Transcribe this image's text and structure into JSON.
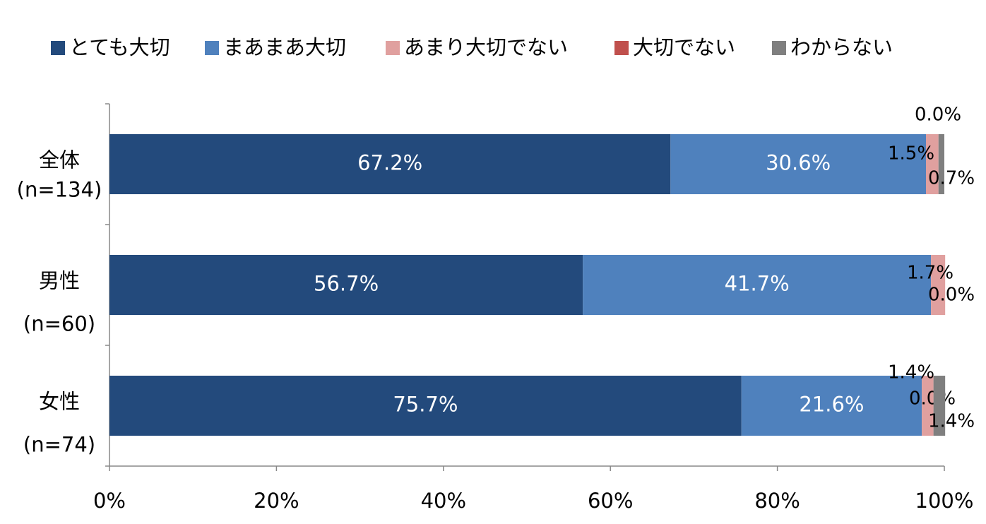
{
  "chart_data": {
    "type": "stacked_bar_horizontal",
    "categories": [
      {
        "label": "全体",
        "n": "(n=134)"
      },
      {
        "label": "男性",
        "n": "(n=60)"
      },
      {
        "label": "女性",
        "n": "(n=74)"
      }
    ],
    "series": [
      {
        "name": "とても大切",
        "color": "#234a7c",
        "values": [
          67.2,
          56.7,
          75.7
        ],
        "value_labels": [
          "67.2%",
          "56.7%",
          "75.7%"
        ]
      },
      {
        "name": "まあまあ大切",
        "color": "#4f81bd",
        "values": [
          30.6,
          41.7,
          21.6
        ],
        "value_labels": [
          "30.6%",
          "41.7%",
          "21.6%"
        ]
      },
      {
        "name": "あまり大切でない",
        "color": "#e0a09f",
        "values": [
          1.5,
          1.7,
          1.4
        ],
        "value_labels": [
          "1.5%",
          "1.7%",
          "1.4%"
        ]
      },
      {
        "name": "大切でない",
        "color": "#c0504d",
        "values": [
          0.0,
          0.0,
          0.0
        ],
        "value_labels": [
          "0.0%",
          "0.0%",
          "0.0%"
        ]
      },
      {
        "name": "わからない",
        "color": "#7f7f7f",
        "values": [
          0.7,
          0.0,
          1.4
        ],
        "value_labels": [
          "0.7%",
          null,
          "1.4%"
        ]
      }
    ],
    "xlim": [
      0,
      100
    ],
    "xticks": [
      {
        "value": 0,
        "label": "0%"
      },
      {
        "value": 20,
        "label": "20%"
      },
      {
        "value": 40,
        "label": "40%"
      },
      {
        "value": 60,
        "label": "60%"
      },
      {
        "value": 80,
        "label": "80%"
      },
      {
        "value": 100,
        "label": "100%"
      }
    ]
  }
}
